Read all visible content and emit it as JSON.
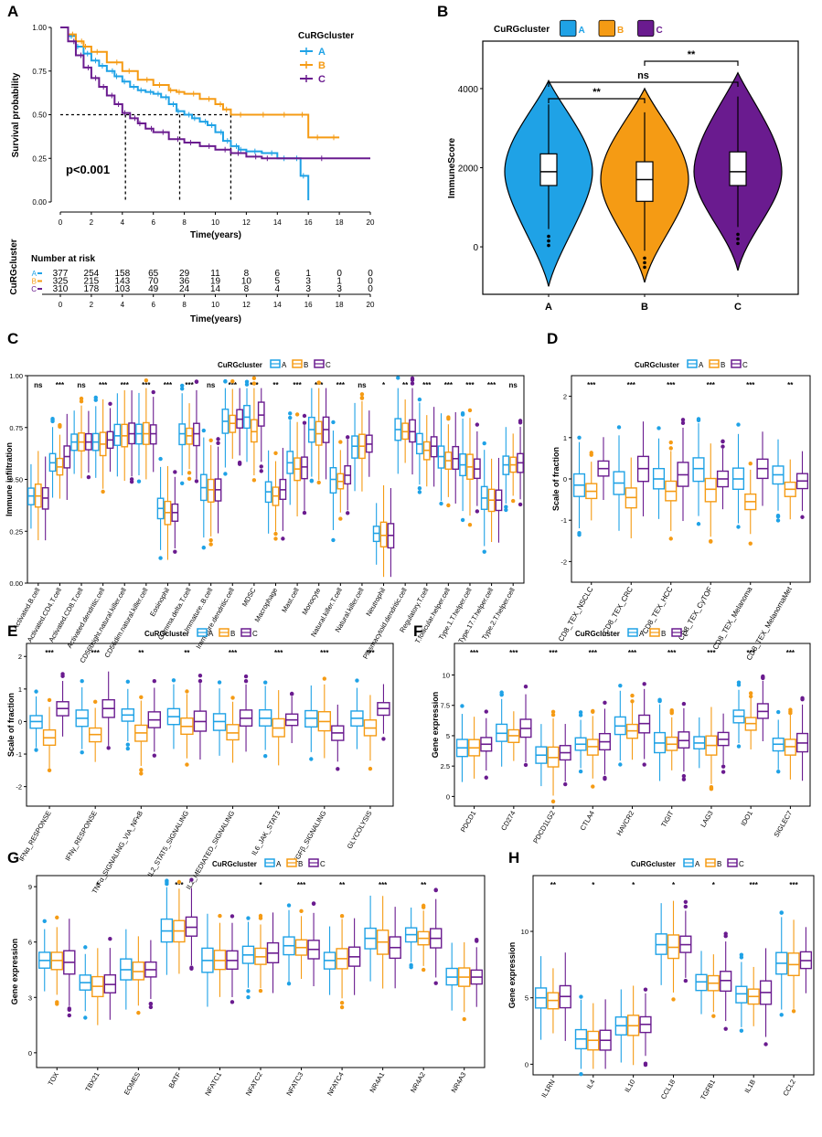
{
  "colors": {
    "A": "#1fa2e6",
    "B": "#f59b14",
    "C": "#6a1b8f"
  },
  "panel_letters": [
    "A",
    "B",
    "C",
    "D",
    "E",
    "F",
    "G",
    "H"
  ],
  "legend_title": "CuRGcluster",
  "groups": [
    "A",
    "B",
    "C"
  ],
  "chart_data": [
    {
      "type": "line",
      "panel": "A",
      "subtype": "kaplan-meier",
      "xlabel": "Time(years)",
      "ylabel": "Survival probability",
      "xlim": [
        0,
        20
      ],
      "ylim": [
        0,
        1
      ],
      "xticks": [
        "0",
        "2",
        "4",
        "6",
        "8",
        "10",
        "12",
        "14",
        "16",
        "18",
        "20"
      ],
      "yticks": [
        "0.00",
        "0.25",
        "0.50",
        "0.75",
        "1.00"
      ],
      "pvalue": "p<0.001",
      "legend_title": "CuRGcluster",
      "median_survival": {
        "A": 7.7,
        "B": 11.0,
        "C": 4.2
      },
      "series": [
        {
          "name": "A",
          "x": [
            0,
            0.5,
            1,
            1.5,
            2,
            2.5,
            3,
            3.5,
            4,
            4.5,
            5,
            5.5,
            6,
            6.5,
            7,
            7.5,
            8,
            8.5,
            9,
            9.5,
            10,
            10.5,
            11,
            11.5,
            12,
            13,
            14,
            15,
            15.5,
            16
          ],
          "y": [
            1,
            0.95,
            0.89,
            0.85,
            0.81,
            0.78,
            0.75,
            0.72,
            0.69,
            0.66,
            0.64,
            0.63,
            0.62,
            0.6,
            0.56,
            0.52,
            0.5,
            0.48,
            0.46,
            0.44,
            0.4,
            0.35,
            0.32,
            0.3,
            0.29,
            0.28,
            0.25,
            0.25,
            0.15,
            0.01
          ]
        },
        {
          "name": "B",
          "x": [
            0,
            0.5,
            1,
            1.5,
            2,
            3,
            4,
            5,
            6,
            7,
            7.5,
            8,
            9,
            10,
            10.5,
            11,
            12,
            14,
            15,
            16,
            17,
            18
          ],
          "y": [
            1,
            0.96,
            0.92,
            0.89,
            0.86,
            0.8,
            0.75,
            0.7,
            0.67,
            0.64,
            0.63,
            0.62,
            0.59,
            0.56,
            0.53,
            0.5,
            0.5,
            0.5,
            0.5,
            0.37,
            0.37,
            0.37
          ]
        },
        {
          "name": "C",
          "x": [
            0,
            0.5,
            1,
            1.5,
            2,
            2.5,
            3,
            3.5,
            4,
            4.5,
            5,
            5.5,
            6,
            7,
            8,
            9,
            10,
            11,
            12,
            13,
            14,
            20
          ],
          "y": [
            1,
            0.92,
            0.84,
            0.77,
            0.71,
            0.66,
            0.61,
            0.56,
            0.51,
            0.48,
            0.45,
            0.42,
            0.4,
            0.36,
            0.34,
            0.32,
            0.3,
            0.28,
            0.26,
            0.25,
            0.25,
            0.25
          ]
        }
      ],
      "risk_table": {
        "title": "Number at risk",
        "ylabel": "CuRGcluster",
        "xlabel": "Time(years)",
        "times": [
          "0",
          "2",
          "4",
          "6",
          "8",
          "10",
          "12",
          "14",
          "16",
          "18",
          "20"
        ],
        "rows": [
          {
            "name": "A",
            "counts": [
              "377",
              "254",
              "158",
              "65",
              "29",
              "11",
              "8",
              "6",
              "1",
              "0",
              "0"
            ]
          },
          {
            "name": "B",
            "counts": [
              "325",
              "215",
              "143",
              "70",
              "36",
              "19",
              "10",
              "5",
              "3",
              "1",
              "0"
            ]
          },
          {
            "name": "C",
            "counts": [
              "310",
              "178",
              "103",
              "49",
              "24",
              "14",
              "8",
              "4",
              "3",
              "3",
              "0"
            ]
          }
        ]
      }
    },
    {
      "type": "violin",
      "panel": "B",
      "ylabel": "ImmuneScore",
      "categories": [
        "A",
        "B",
        "C"
      ],
      "ylim": [
        -1200,
        5200
      ],
      "yticks": [
        "0",
        "2000",
        "4000"
      ],
      "legend_title": "CuRGcluster",
      "box": [
        {
          "name": "A",
          "q1": 1550,
          "median": 1900,
          "q3": 2350,
          "whisker_low": 450,
          "whisker_high": 3600,
          "min": -1000,
          "max": 4200
        },
        {
          "name": "B",
          "q1": 1150,
          "median": 1700,
          "q3": 2150,
          "whisker_low": -100,
          "whisker_high": 3400,
          "min": -900,
          "max": 4000
        },
        {
          "name": "C",
          "q1": 1550,
          "median": 1900,
          "q3": 2400,
          "whisker_low": 500,
          "whisker_high": 3800,
          "min": -600,
          "max": 4400
        }
      ],
      "comparisons": [
        {
          "pair": [
            "A",
            "B"
          ],
          "label": "**"
        },
        {
          "pair": [
            "A",
            "C"
          ],
          "label": "ns"
        },
        {
          "pair": [
            "B",
            "C"
          ],
          "label": "**"
        }
      ]
    },
    {
      "type": "boxplot",
      "panel": "C",
      "ylabel": "Immune infiltration",
      "ylim": [
        0,
        1
      ],
      "yticks": [
        "0.00",
        "0.25",
        "0.50",
        "0.75",
        "1.00"
      ],
      "legend_title": "CuRGcluster",
      "categories": [
        "Activated.B.cell",
        "Activated.CD4.T.cell",
        "Activated.CD8.T.cell",
        "Activated.dendritic.cell",
        "CD56bright.natural.killer.cell",
        "CD56dim.natural.killer.cell",
        "Eosinophil",
        "Gamma.delta.T.cell",
        "Immature..B.cell",
        "Immature.dendritic.cell",
        "MDSC",
        "Macrophage",
        "Mast.cell",
        "Monocyte",
        "Natural.killer.T.cell",
        "Natural.killer.cell",
        "Neutrophil",
        "Plasmacytoid.dendritic.cell",
        "Regulatory.T.cell",
        "T.follicular.helper.cell",
        "Type.1.T.helper.cell",
        "Type.17.T.helper.cell",
        "Type.2.T.helper.cell"
      ],
      "significance": [
        "ns",
        "***",
        "ns",
        "***",
        "***",
        "***",
        "***",
        "***",
        "ns",
        "***",
        "***",
        "**",
        "***",
        "***",
        "***",
        "ns",
        "*",
        "**",
        "***",
        "***",
        "***",
        "***",
        "ns"
      ],
      "medians": {
        "A": [
          0.42,
          0.58,
          0.68,
          0.68,
          0.71,
          0.72,
          0.36,
          0.72,
          0.46,
          0.78,
          0.8,
          0.44,
          0.58,
          0.74,
          0.5,
          0.66,
          0.24,
          0.74,
          0.67,
          0.61,
          0.57,
          0.41,
          0.57
        ],
        "B": [
          0.42,
          0.56,
          0.68,
          0.67,
          0.71,
          0.72,
          0.34,
          0.71,
          0.45,
          0.77,
          0.73,
          0.42,
          0.55,
          0.72,
          0.49,
          0.66,
          0.23,
          0.73,
          0.64,
          0.59,
          0.56,
          0.4,
          0.57
        ],
        "C": [
          0.41,
          0.61,
          0.68,
          0.69,
          0.72,
          0.72,
          0.34,
          0.72,
          0.45,
          0.79,
          0.81,
          0.45,
          0.56,
          0.74,
          0.52,
          0.67,
          0.23,
          0.73,
          0.66,
          0.6,
          0.55,
          0.4,
          0.58
        ]
      }
    },
    {
      "type": "boxplot",
      "panel": "D",
      "ylabel": "Scale of fraction",
      "ylim": [
        -2.5,
        2.5
      ],
      "yticks": [
        "-2",
        "-1",
        "0",
        "1",
        "2"
      ],
      "legend_title": "CuRGcluster",
      "categories": [
        "CD8_TEX_NSCLC",
        "CD8_TEX_CRC",
        "CD8_TEX_HCC",
        "CD8_TEX_CyTOF",
        "CD8_TEX_Melanoma",
        "CD8_TEX_MelanomaMet"
      ],
      "significance": [
        "***",
        "***",
        "***",
        "***",
        "***",
        "**"
      ],
      "medians": {
        "A": [
          -0.15,
          -0.1,
          0,
          0.25,
          0,
          0.1
        ],
        "B": [
          -0.3,
          -0.45,
          -0.3,
          -0.25,
          -0.55,
          -0.25
        ],
        "C": [
          0.25,
          0.25,
          0.1,
          0,
          0.25,
          -0.05
        ]
      }
    },
    {
      "type": "boxplot",
      "panel": "E",
      "ylabel": "Scale of fraction",
      "ylim": [
        -2.6,
        2.4
      ],
      "yticks": [
        "-2",
        "-1",
        "0",
        "1",
        "2"
      ],
      "legend_title": "CuRGcluster",
      "categories": [
        "IFNα_RESPONSE",
        "IFNγ_RESPONSE",
        "TNFα_SIGNALING_VIA_NFκB",
        "IL2_STAT5_SIGNALING",
        "IL2_MEDIATED_SIGNALING",
        "IL6_JAK_STAT3",
        "TGFβ_SIGNALING",
        "GLYCOLYSIS"
      ],
      "significance": [
        "***",
        "***",
        "**",
        "**",
        "***",
        "***",
        "***",
        "***"
      ],
      "medians": {
        "A": [
          0,
          0.1,
          0.2,
          0.15,
          0,
          0.1,
          0.1,
          0.1
        ],
        "B": [
          -0.5,
          -0.4,
          -0.35,
          -0.15,
          -0.35,
          -0.2,
          0,
          -0.2
        ],
        "C": [
          0.4,
          0.4,
          0.05,
          0,
          0.1,
          0.05,
          -0.35,
          0.4
        ]
      }
    },
    {
      "type": "boxplot",
      "panel": "F",
      "ylabel": "Gene expression",
      "ylim": [
        -0.8,
        12.6
      ],
      "yticks": [
        "0",
        "2.5",
        "5",
        "7.5",
        "10"
      ],
      "legend_title": "CuRGcluster",
      "categories": [
        "PDCD1",
        "CD274",
        "PDCD1LG2",
        "CTLA4",
        "HAVCR2",
        "TIGIT",
        "LAG3",
        "IDO1",
        "SIGLEC7"
      ],
      "significance": [
        "***",
        "***",
        "***",
        "***",
        "***",
        "***",
        "***",
        "***",
        "***"
      ],
      "medians": {
        "A": [
          4.0,
          5.2,
          3.4,
          4.3,
          5.8,
          4.4,
          4.4,
          6.6,
          4.3
        ],
        "B": [
          4.0,
          5.0,
          3.2,
          4.1,
          5.4,
          4.3,
          4.2,
          6.0,
          4.1
        ],
        "C": [
          4.3,
          5.6,
          3.6,
          4.5,
          6.0,
          4.6,
          4.7,
          7.0,
          4.4
        ]
      }
    },
    {
      "type": "boxplot",
      "panel": "G",
      "ylabel": "Gene expression",
      "ylim": [
        -0.8,
        9.6
      ],
      "yticks": [
        "0",
        "3",
        "6",
        "9"
      ],
      "legend_title": "CuRGcluster",
      "categories": [
        "TOX",
        "TBX21",
        "EOMES",
        "BATF",
        "NFATC1",
        "NFATC2",
        "NFATC3",
        "NFATC4",
        "NR4A1",
        "NR4A2",
        "NR4A3"
      ],
      "significance": [
        "",
        "*",
        "",
        "***",
        "",
        "*",
        "***",
        "**",
        "***",
        "**",
        ""
      ],
      "medians": {
        "A": [
          5.0,
          3.8,
          4.5,
          6.6,
          5.0,
          5.3,
          5.8,
          5.0,
          6.2,
          6.4,
          4.1
        ],
        "B": [
          5.0,
          3.6,
          4.4,
          6.6,
          5.0,
          5.2,
          5.7,
          5.1,
          6.0,
          6.2,
          4.1
        ],
        "C": [
          4.9,
          3.7,
          4.5,
          6.8,
          5.0,
          5.4,
          5.6,
          5.2,
          5.7,
          6.2,
          4.1
        ]
      }
    },
    {
      "type": "boxplot",
      "panel": "H",
      "ylabel": "Gene expression",
      "ylim": [
        -0.8,
        14.2
      ],
      "yticks": [
        "0",
        "5",
        "10"
      ],
      "legend_title": "CuRGcluster",
      "categories": [
        "IL1RN",
        "IL4",
        "IL10",
        "CCL18",
        "TGFB1",
        "IL1B",
        "CCL2"
      ],
      "significance": [
        "**",
        "*",
        "*",
        "*",
        "*",
        "***",
        "***"
      ],
      "medians": {
        "A": [
          5.0,
          1.9,
          2.9,
          9.0,
          6.2,
          5.3,
          7.6
        ],
        "B": [
          4.8,
          1.8,
          2.9,
          8.8,
          6.1,
          5.1,
          7.5
        ],
        "C": [
          5.1,
          1.8,
          3.0,
          9.0,
          6.3,
          5.4,
          7.8
        ]
      }
    }
  ]
}
